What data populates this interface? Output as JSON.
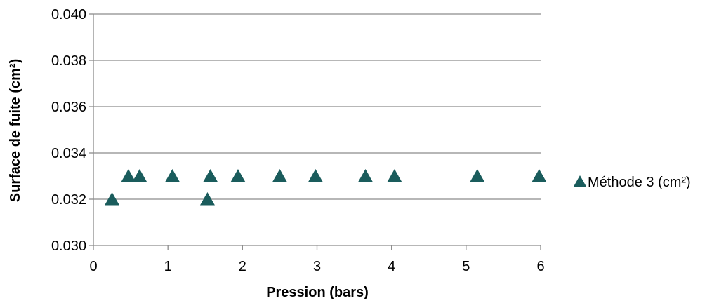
{
  "chart_data": {
    "type": "scatter",
    "title": "",
    "xlabel": "Pression (bars)",
    "ylabel": "Surface de fuite (cm²)",
    "xlim": [
      0,
      6
    ],
    "ylim": [
      0.03,
      0.04
    ],
    "x_ticks": [
      "0",
      "1",
      "2",
      "3",
      "4",
      "5",
      "6"
    ],
    "y_ticks": [
      "0.030",
      "0.032",
      "0.034",
      "0.036",
      "0.038",
      "0.040"
    ],
    "grid": "horizontal",
    "legend_position": "right",
    "series": [
      {
        "name": "Méthode 3 (cm²)",
        "marker": "triangle",
        "color": "#1a5c5c",
        "points": [
          {
            "x": 0.25,
            "y": 0.032
          },
          {
            "x": 0.47,
            "y": 0.033
          },
          {
            "x": 0.62,
            "y": 0.033
          },
          {
            "x": 1.06,
            "y": 0.033
          },
          {
            "x": 1.53,
            "y": 0.032
          },
          {
            "x": 1.57,
            "y": 0.033
          },
          {
            "x": 1.94,
            "y": 0.033
          },
          {
            "x": 2.5,
            "y": 0.033
          },
          {
            "x": 2.98,
            "y": 0.033
          },
          {
            "x": 3.65,
            "y": 0.033
          },
          {
            "x": 4.04,
            "y": 0.033
          },
          {
            "x": 5.15,
            "y": 0.033
          },
          {
            "x": 5.98,
            "y": 0.033
          }
        ]
      }
    ]
  }
}
